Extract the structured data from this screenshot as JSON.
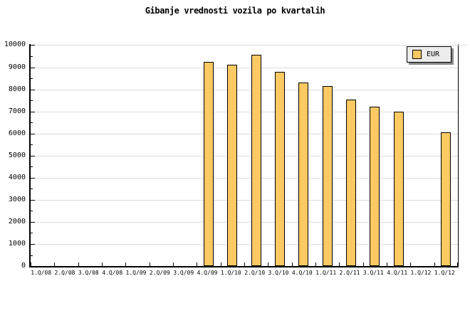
{
  "title": "Gibanje vrednosti vozila po kvartalih",
  "legend": {
    "label": "EUR",
    "swatch_color": "#FDC962"
  },
  "colors": {
    "bar_fill": "#FDC962",
    "bar_border": "#000000",
    "gridline": "#DCDCDC",
    "axis": "#000000",
    "background": "#FFFFFF",
    "legend_bg": "#ECECEC",
    "legend_shadow": "#888888"
  },
  "chart_data": {
    "type": "bar",
    "title": "Gibanje vrednosti vozila po kvartalih",
    "categories": [
      "1.Q/08",
      "2.Q/08",
      "3.Q/08",
      "4.Q/08",
      "1.Q/09",
      "2.Q/09",
      "3.Q/09",
      "4.Q/09",
      "1.Q/10",
      "2.Q/10",
      "3.Q/10",
      "4.Q/10",
      "1.Q/11",
      "2.Q/11",
      "3.Q/11",
      "4.Q/11",
      "1.Q/12",
      "1.Q/12"
    ],
    "series": [
      {
        "name": "EUR",
        "values": [
          null,
          null,
          null,
          null,
          null,
          null,
          null,
          9250,
          9100,
          9550,
          8800,
          8300,
          8150,
          7550,
          7200,
          7000,
          null,
          6050
        ]
      }
    ],
    "xlabel": "",
    "ylabel": "",
    "ylim": [
      0,
      10000
    ],
    "ytick_interval": 1000,
    "ytick_minor_interval": 500,
    "yticks": [
      0,
      1000,
      2000,
      3000,
      4000,
      5000,
      6000,
      7000,
      8000,
      9000,
      10000
    ],
    "grid": true,
    "legend_position": "top-right"
  }
}
